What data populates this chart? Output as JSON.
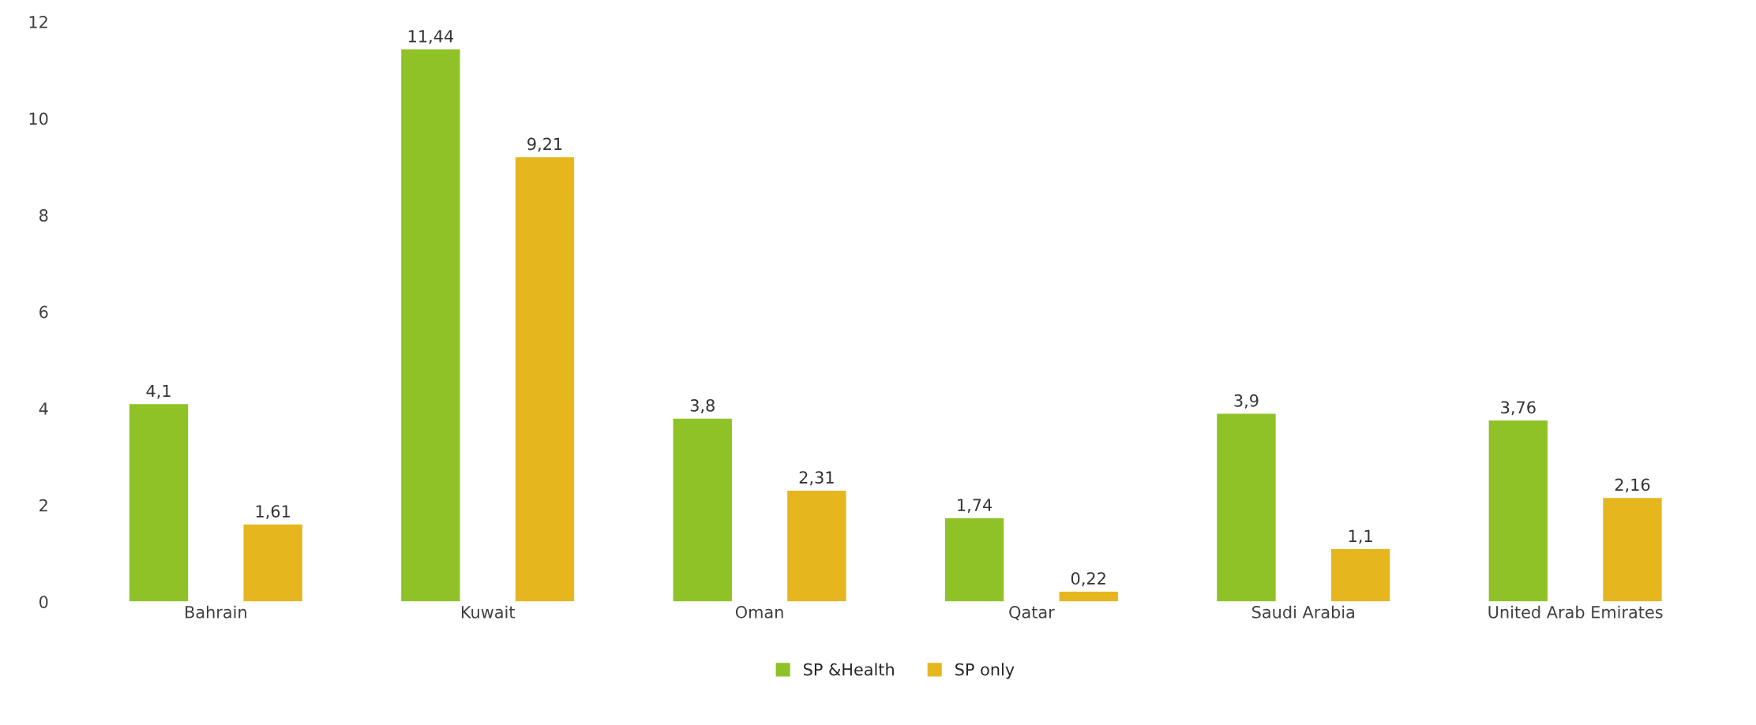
{
  "chart_data": {
    "type": "bar",
    "categories": [
      "Bahrain",
      "Kuwait",
      "Oman",
      "Qatar",
      "Saudi Arabia",
      "United Arab Emirates"
    ],
    "series": [
      {
        "name": "SP &Health",
        "color": "#8fc226",
        "values": [
          4.1,
          11.44,
          3.8,
          1.74,
          3.9,
          3.76
        ],
        "value_labels": [
          "4,1",
          "11,44",
          "3,8",
          "1,74",
          "3,9",
          "3,76"
        ]
      },
      {
        "name": "SP only",
        "color": "#e6b61e",
        "values": [
          1.61,
          9.21,
          2.31,
          0.22,
          1.1,
          2.16
        ],
        "value_labels": [
          "1,61",
          "9,21",
          "2,31",
          "0,22",
          "1,1",
          "2,16"
        ]
      }
    ],
    "ylim": [
      0,
      12
    ],
    "yticks": [
      0,
      2,
      4,
      6,
      8,
      10,
      12
    ],
    "grid": false,
    "legend": "bottom"
  }
}
